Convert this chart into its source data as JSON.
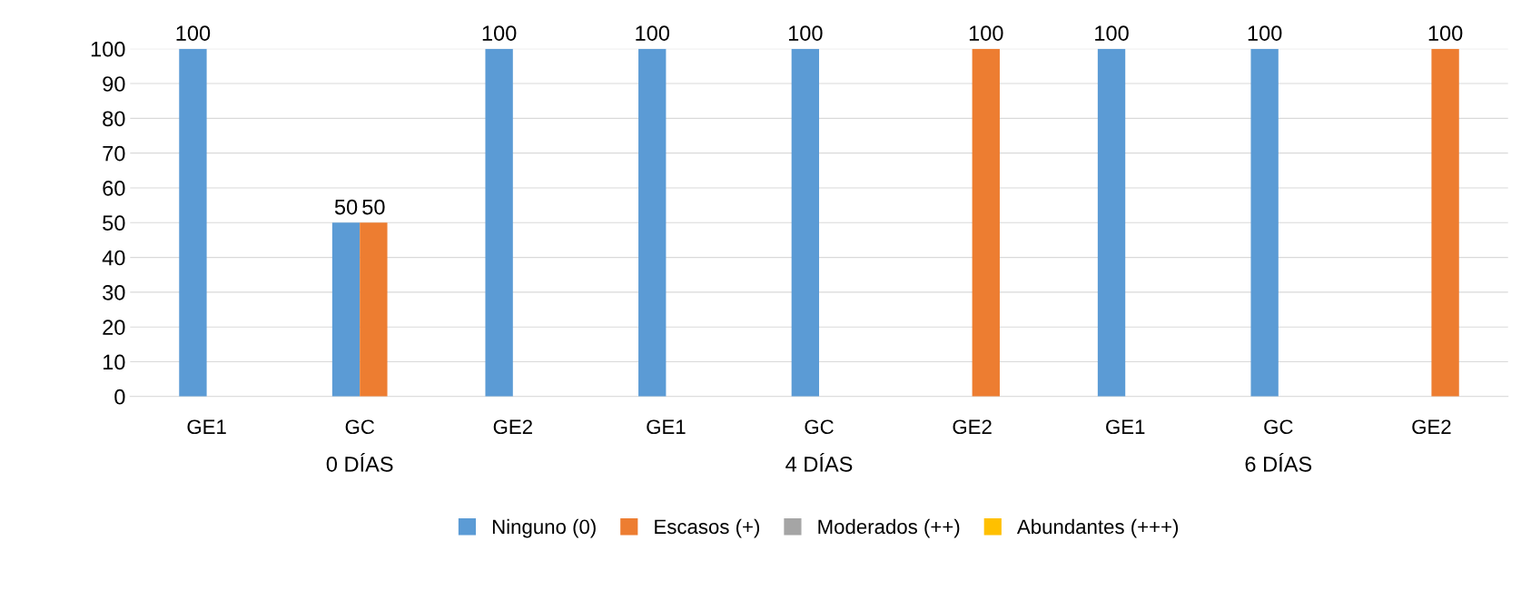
{
  "chart_data": {
    "type": "bar",
    "categories": [
      "GE1",
      "GC",
      "GE2",
      "GE1",
      "GC",
      "GE2",
      "GE1",
      "GC",
      "GE2"
    ],
    "series": [
      {
        "name": "Ninguno (0)",
        "color": "#5b9bd5",
        "values": [
          100,
          50,
          100,
          100,
          100,
          null,
          100,
          100,
          null
        ],
        "value_labels": [
          "100",
          "50",
          "100",
          "100",
          "100",
          null,
          "100",
          "100",
          null
        ]
      },
      {
        "name": "Escasos (+)",
        "color": "#ed7d31",
        "values": [
          null,
          50,
          null,
          null,
          null,
          100,
          null,
          null,
          100
        ],
        "value_labels": [
          null,
          "50",
          null,
          null,
          null,
          "100",
          null,
          null,
          "100"
        ]
      },
      {
        "name": "Moderados (++)",
        "color": "#a5a5a5",
        "values": [
          null,
          null,
          null,
          null,
          null,
          null,
          null,
          null,
          null
        ]
      },
      {
        "name": "Abundantes (+++)",
        "color": "#ffc000",
        "values": [
          null,
          null,
          null,
          null,
          null,
          null,
          null,
          null,
          null
        ]
      }
    ],
    "annotations": [
      "0 DÍAS",
      "4 DÍAS",
      "6 DÍAS"
    ],
    "ylim": [
      0,
      100
    ],
    "yticks": [
      0,
      10,
      20,
      30,
      40,
      50,
      60,
      70,
      80,
      90,
      100
    ],
    "grid": "y",
    "legend": "bottom"
  }
}
